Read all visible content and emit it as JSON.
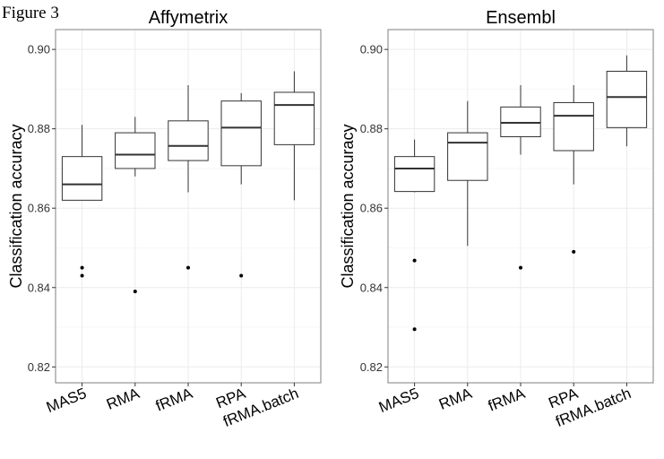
{
  "figure_label": "Figure 3",
  "chart_data": [
    {
      "type": "box",
      "title": "Affymetrix",
      "xlabel": "",
      "ylabel": "Classification accuracy",
      "ylim": [
        0.816,
        0.905
      ],
      "yticks": [
        0.82,
        0.84,
        0.86,
        0.88,
        0.9
      ],
      "ytick_labels": [
        "0.82",
        "0.84",
        "0.86",
        "0.88",
        "0.90"
      ],
      "categories": [
        "MAS5",
        "RMA",
        "fRMA",
        "RPA",
        "fRMA.batch"
      ],
      "boxes": [
        {
          "whisker_low": 0.862,
          "q1": 0.862,
          "median": 0.866,
          "q3": 0.873,
          "whisker_high": 0.881,
          "outliers": [
            0.845,
            0.843
          ]
        },
        {
          "whisker_low": 0.868,
          "q1": 0.87,
          "median": 0.8735,
          "q3": 0.879,
          "whisker_high": 0.883,
          "outliers": [
            0.839
          ]
        },
        {
          "whisker_low": 0.864,
          "q1": 0.872,
          "median": 0.8757,
          "q3": 0.882,
          "whisker_high": 0.891,
          "outliers": [
            0.845
          ]
        },
        {
          "whisker_low": 0.866,
          "q1": 0.8707,
          "median": 0.8803,
          "q3": 0.887,
          "whisker_high": 0.889,
          "outliers": [
            0.843
          ]
        },
        {
          "whisker_low": 0.862,
          "q1": 0.876,
          "median": 0.886,
          "q3": 0.8892,
          "whisker_high": 0.8945,
          "outliers": []
        }
      ]
    },
    {
      "type": "box",
      "title": "Ensembl",
      "xlabel": "",
      "ylabel": "Classification accuracy",
      "ylim": [
        0.816,
        0.905
      ],
      "yticks": [
        0.82,
        0.84,
        0.86,
        0.88,
        0.9
      ],
      "ytick_labels": [
        "0.82",
        "0.84",
        "0.86",
        "0.88",
        "0.90"
      ],
      "categories": [
        "MAS5",
        "RMA",
        "fRMA",
        "RPA",
        "fRMA.batch"
      ],
      "boxes": [
        {
          "whisker_low": 0.864,
          "q1": 0.8642,
          "median": 0.87,
          "q3": 0.873,
          "whisker_high": 0.8773,
          "outliers": [
            0.8468,
            0.8295
          ]
        },
        {
          "whisker_low": 0.8505,
          "q1": 0.867,
          "median": 0.8765,
          "q3": 0.879,
          "whisker_high": 0.887,
          "outliers": []
        },
        {
          "whisker_low": 0.8735,
          "q1": 0.878,
          "median": 0.8815,
          "q3": 0.8855,
          "whisker_high": 0.891,
          "outliers": [
            0.845
          ]
        },
        {
          "whisker_low": 0.866,
          "q1": 0.8745,
          "median": 0.8833,
          "q3": 0.8866,
          "whisker_high": 0.891,
          "outliers": [
            0.849
          ]
        },
        {
          "whisker_low": 0.8756,
          "q1": 0.8803,
          "median": 0.888,
          "q3": 0.8945,
          "whisker_high": 0.8985,
          "outliers": []
        }
      ]
    }
  ],
  "colors": {
    "panel_bg": "#ffffff",
    "panel_border": "#7f7f7f",
    "grid_major": "#ebebeb",
    "grid_minor": "#f5f5f5",
    "box_stroke": "#333333",
    "median": "#333333",
    "point": "#000000"
  }
}
